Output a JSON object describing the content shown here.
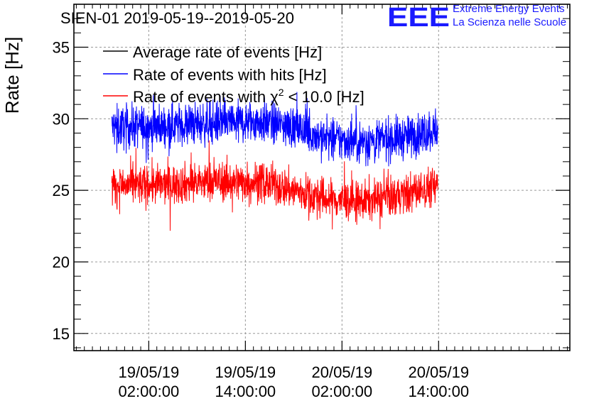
{
  "header": {
    "title": "SIEN-01 2019-05-19--2019-05-20",
    "logo": {
      "mark": "EEE",
      "line1": "Extreme Energy Events",
      "line2": "La Scienza nelle Scuole",
      "color": "#1a1aff"
    }
  },
  "chart_data": {
    "type": "line",
    "title": "SIEN-01 2019-05-19--2019-05-20",
    "xlabel": "",
    "ylabel": "Rate [Hz]",
    "ylim": [
      13.8,
      38
    ],
    "xlim_hours": [
      -7.3,
      54.3
    ],
    "grid": true,
    "legend_position": "top-left",
    "y_ticks": [
      15,
      20,
      25,
      30,
      35
    ],
    "x_ticks": [
      {
        "hour": 2,
        "date": "19/05/19",
        "time": "02:00:00"
      },
      {
        "hour": 14,
        "date": "19/05/19",
        "time": "14:00:00"
      },
      {
        "hour": 26,
        "date": "20/05/19",
        "time": "02:00:00"
      },
      {
        "hour": 38,
        "date": "20/05/19",
        "time": "14:00:00"
      }
    ],
    "x_range_hours": [
      -2.6,
      37.9
    ],
    "series": [
      {
        "name": "Average rate of events [Hz]",
        "legend_main": "Average rate of events [Hz]",
        "color": "#000000",
        "plotted": false
      },
      {
        "name": "Rate of events with hits [Hz]",
        "legend_main": "Rate of events with hits [Hz]",
        "color": "#0000ff",
        "noise": 0.75,
        "trend": [
          [
            -2.6,
            29.4
          ],
          [
            4,
            29.5
          ],
          [
            10,
            29.7
          ],
          [
            16,
            29.8
          ],
          [
            20,
            29.4
          ],
          [
            24,
            28.6
          ],
          [
            28,
            28.4
          ],
          [
            34,
            28.7
          ],
          [
            37.9,
            29.3
          ]
        ]
      },
      {
        "name": "Rate of events with χ2 < 10.0 [Hz]",
        "legend_main": "Rate of events with χ",
        "legend_sup": "2",
        "legend_rest": " < 10.0 [Hz]",
        "color": "#ff0000",
        "noise": 0.7,
        "trend": [
          [
            -2.6,
            25.3
          ],
          [
            4,
            25.4
          ],
          [
            10,
            25.6
          ],
          [
            16,
            25.6
          ],
          [
            20,
            25.0
          ],
          [
            24,
            24.4
          ],
          [
            28,
            24.2
          ],
          [
            34,
            24.7
          ],
          [
            37.9,
            25.4
          ]
        ]
      }
    ]
  }
}
